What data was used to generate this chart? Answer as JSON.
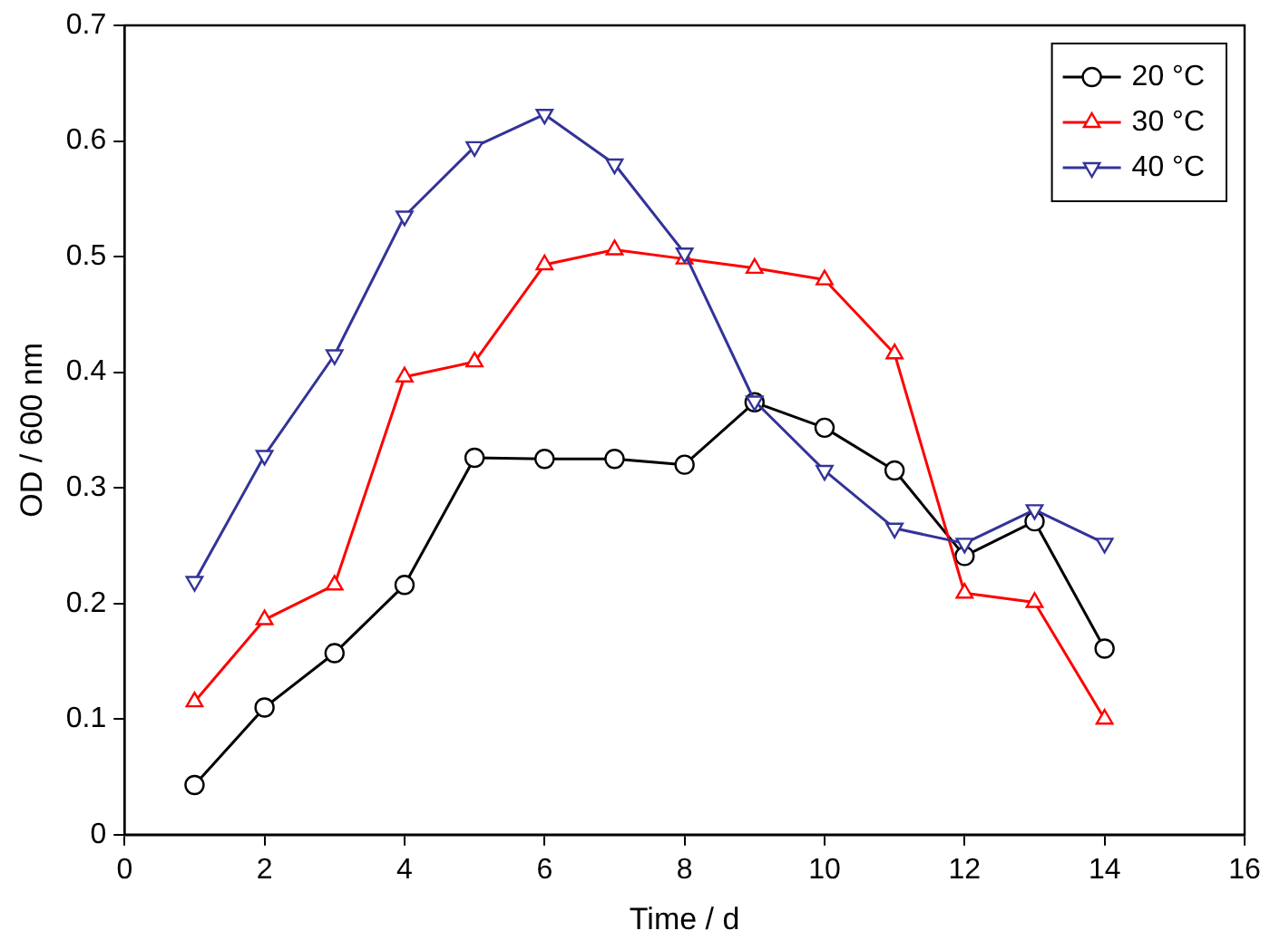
{
  "chart_data": {
    "type": "line",
    "xlabel": "Time / d",
    "ylabel": "OD / 600 nm",
    "xlim": [
      0,
      16
    ],
    "xticks": [
      0,
      2,
      4,
      6,
      8,
      10,
      12,
      14,
      16
    ],
    "ylim": [
      0,
      0.7
    ],
    "yticks": [
      0.0,
      0.1,
      0.2,
      0.3,
      0.4,
      0.5,
      0.6,
      0.7
    ],
    "grid": false,
    "legend": "top right",
    "x": [
      1,
      2,
      3,
      4,
      5,
      6,
      7,
      8,
      9,
      10,
      11,
      12,
      13,
      14
    ],
    "series": [
      {
        "name": "20 °C",
        "color": "#000000",
        "marker": "circle",
        "values": [
          0.043,
          0.11,
          0.157,
          0.216,
          0.326,
          0.325,
          0.325,
          0.32,
          0.374,
          0.352,
          0.315,
          0.241,
          0.271,
          0.161
        ]
      },
      {
        "name": "30 °C",
        "color": "#ff0000",
        "marker": "triangle",
        "values": [
          0.115,
          0.186,
          0.216,
          0.396,
          0.409,
          0.493,
          0.506,
          0.498,
          0.49,
          0.48,
          0.416,
          0.209,
          0.201,
          0.1
        ]
      },
      {
        "name": "40 °C",
        "color": "#333399",
        "marker": "triangle_down",
        "values": [
          0.219,
          0.328,
          0.415,
          0.535,
          0.595,
          0.623,
          0.58,
          0.503,
          0.375,
          0.315,
          0.265,
          0.252,
          0.281,
          0.252
        ]
      }
    ]
  }
}
